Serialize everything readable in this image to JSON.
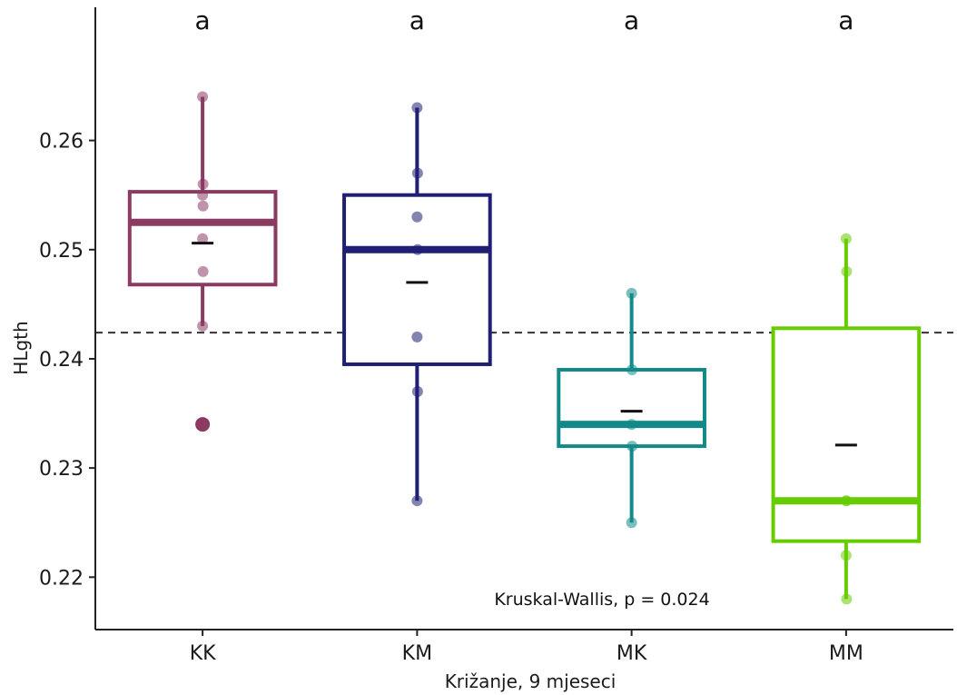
{
  "chart_data": {
    "type": "box",
    "xlabel": "Križanje, 9 mjeseci",
    "ylabel": "HLgth",
    "ylim": [
      0.2152,
      0.2722
    ],
    "yticks": [
      0.22,
      0.23,
      0.24,
      0.25,
      0.26
    ],
    "reference_line": 0.2424,
    "annotation": "Kruskal-Wallis, p = 0.024",
    "grid": false,
    "groups": [
      {
        "category": "KK",
        "letter": "a",
        "color": "#8B3A62",
        "whisker_low": 0.243,
        "q1": 0.2468,
        "median": 0.2525,
        "q3": 0.2553,
        "whisker_high": 0.264,
        "mean": 0.2506,
        "points": [
          0.264,
          0.256,
          0.255,
          0.254,
          0.251,
          0.248,
          0.243,
          0.234
        ],
        "outliers": [
          0.234
        ]
      },
      {
        "category": "KM",
        "letter": "a",
        "color": "#1F1F73",
        "whisker_low": 0.227,
        "q1": 0.2395,
        "median": 0.25,
        "q3": 0.255,
        "whisker_high": 0.263,
        "mean": 0.247,
        "points": [
          0.263,
          0.257,
          0.253,
          0.25,
          0.242,
          0.237,
          0.227
        ],
        "outliers": []
      },
      {
        "category": "MK",
        "letter": "a",
        "color": "#138A8A",
        "whisker_low": 0.225,
        "q1": 0.232,
        "median": 0.234,
        "q3": 0.239,
        "whisker_high": 0.246,
        "mean": 0.2352,
        "points": [
          0.246,
          0.239,
          0.234,
          0.232,
          0.225
        ],
        "outliers": []
      },
      {
        "category": "MM",
        "letter": "a",
        "color": "#66CC00",
        "whisker_low": 0.218,
        "q1": 0.2233,
        "median": 0.227,
        "q3": 0.2428,
        "whisker_high": 0.251,
        "mean": 0.2321,
        "points": [
          0.251,
          0.248,
          0.227,
          0.227,
          0.222,
          0.218
        ],
        "outliers": []
      }
    ]
  }
}
